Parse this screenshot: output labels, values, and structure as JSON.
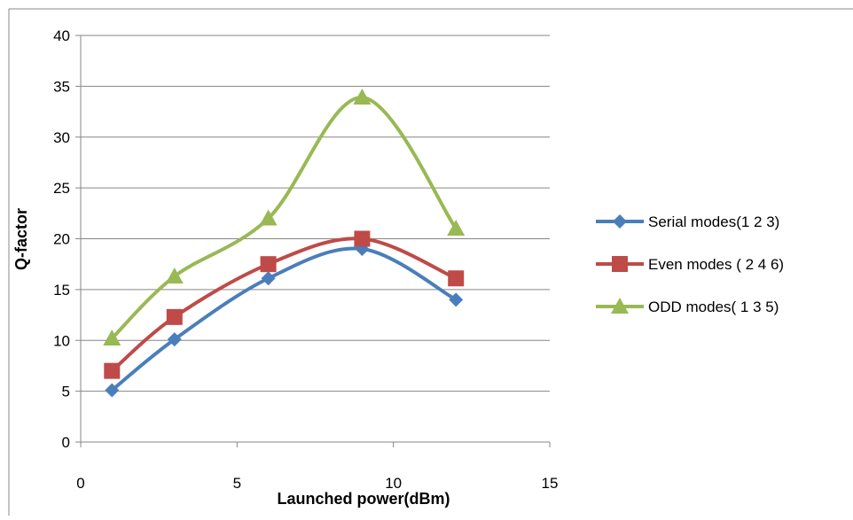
{
  "chart_data": {
    "type": "line",
    "title": "",
    "xlabel": "Launched power(dBm)",
    "ylabel": "Q-factor",
    "xlim": [
      0,
      15
    ],
    "ylim": [
      0,
      40
    ],
    "xticks": [
      0,
      5,
      10,
      15
    ],
    "yticks": [
      0,
      5,
      10,
      15,
      20,
      25,
      30,
      35,
      40
    ],
    "x_tick_labels": [
      "0",
      "5",
      "10",
      "15"
    ],
    "y_tick_labels": [
      "0",
      "5",
      "10",
      "15",
      "20",
      "25",
      "30",
      "35",
      "40"
    ],
    "grid": "horizontal",
    "smooth": true,
    "legend_position": "right",
    "series": [
      {
        "name": "Serial modes(1 2 3)",
        "color": "#4a7ebb",
        "marker": "diamond",
        "x": [
          1,
          3,
          6,
          9,
          12
        ],
        "y": [
          5.1,
          10.1,
          16.1,
          19.0,
          14.0
        ]
      },
      {
        "name": "Even modes ( 2 4 6)",
        "color": "#be4b48",
        "marker": "square",
        "x": [
          1,
          3,
          6,
          9,
          12
        ],
        "y": [
          7.0,
          12.3,
          17.5,
          20.0,
          16.1
        ]
      },
      {
        "name": "ODD modes( 1 3 5)",
        "color": "#98b954",
        "marker": "triangle",
        "x": [
          1,
          3,
          6,
          9,
          12
        ],
        "y": [
          10.2,
          16.3,
          22.0,
          33.9,
          21.0
        ]
      }
    ]
  }
}
